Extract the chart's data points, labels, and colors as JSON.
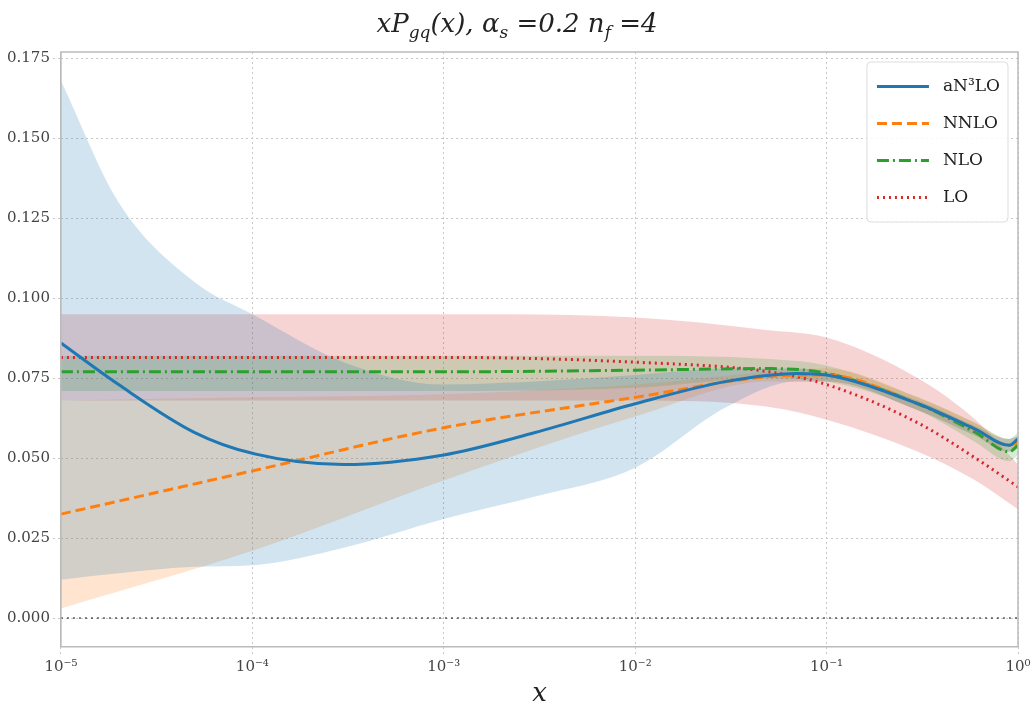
{
  "chart_data": {
    "type": "line",
    "title": "xP$_{gq}$(x),  α$_{s}$ =0.2 n$_{f}$ =4",
    "xlabel": "x",
    "log": "x",
    "grid": true,
    "legend": "top right",
    "marker": "none",
    "xlim": [
      1e-05,
      1
    ],
    "xticks": [
      {
        "value": 1e-05,
        "label": "10⁻⁵"
      },
      {
        "value": 0.0001,
        "label": "10⁻⁴"
      },
      {
        "value": 0.001,
        "label": "10⁻³"
      },
      {
        "value": 0.01,
        "label": "10⁻²"
      },
      {
        "value": 0.1,
        "label": "10⁻¹"
      },
      {
        "value": 1,
        "label": "10⁰"
      }
    ],
    "ylim": [
      -0.009,
      0.177
    ],
    "yticks": [
      {
        "value": 0,
        "label": "0.000"
      },
      {
        "value": 0.025,
        "label": "0.025"
      },
      {
        "value": 0.05,
        "label": "0.050"
      },
      {
        "value": 0.075,
        "label": "0.075"
      },
      {
        "value": 0.1,
        "label": "0.100"
      },
      {
        "value": 0.125,
        "label": "0.125"
      },
      {
        "value": 0.15,
        "label": "0.150"
      },
      {
        "value": 0.175,
        "label": "0.175"
      }
    ],
    "ref_lines": [
      {
        "axis": "y",
        "value": 0,
        "color": "#000000",
        "line_style": "dotted"
      }
    ],
    "series": [
      {
        "name": "aN³LO",
        "color": "#1f77b4",
        "line_style": "solid",
        "x": [
          1e-05,
          2e-05,
          5e-05,
          0.0001,
          0.0003,
          0.001,
          0.003,
          0.01,
          0.03,
          0.07,
          0.1,
          0.3,
          0.6,
          0.9,
          1
        ],
        "values": [
          0.086,
          0.073,
          0.058,
          0.0515,
          0.048,
          0.051,
          0.058,
          0.067,
          0.074,
          0.0765,
          0.076,
          0.067,
          0.059,
          0.054,
          0.056
        ],
        "lower": [
          0.012,
          0.014,
          0.016,
          0.0165,
          0.022,
          0.031,
          0.038,
          0.047,
          0.066,
          0.074,
          0.074,
          0.065,
          0.057,
          0.052,
          0.054
        ],
        "upper": [
          0.168,
          0.13,
          0.105,
          0.095,
          0.08,
          0.073,
          0.074,
          0.076,
          0.078,
          0.078,
          0.077,
          0.068,
          0.06,
          0.056,
          0.057
        ]
      },
      {
        "name": "NNLO",
        "color": "#ff7f0e",
        "line_style": "dashed",
        "x": [
          1e-05,
          0.0001,
          0.001,
          0.01,
          0.05,
          0.1,
          0.3,
          0.6,
          0.9,
          1
        ],
        "values": [
          0.0325,
          0.046,
          0.0595,
          0.069,
          0.0755,
          0.076,
          0.067,
          0.059,
          0.054,
          0.055
        ],
        "lower": [
          0.003,
          0.021,
          0.043,
          0.063,
          0.074,
          0.074,
          0.065,
          0.057,
          0.052,
          0.053
        ],
        "upper": [
          0.068,
          0.069,
          0.07,
          0.073,
          0.077,
          0.078,
          0.069,
          0.061,
          0.056,
          0.057
        ]
      },
      {
        "name": "NLO",
        "color": "#2ca02c",
        "line_style": "dashdot",
        "x": [
          1e-05,
          0.001,
          0.01,
          0.05,
          0.1,
          0.3,
          0.6,
          0.9,
          1
        ],
        "values": [
          0.077,
          0.077,
          0.0775,
          0.078,
          0.0765,
          0.067,
          0.058,
          0.052,
          0.054
        ],
        "lower": [
          0.071,
          0.071,
          0.072,
          0.075,
          0.074,
          0.065,
          0.055,
          0.049,
          0.051
        ],
        "upper": [
          0.082,
          0.082,
          0.082,
          0.081,
          0.079,
          0.069,
          0.061,
          0.056,
          0.058
        ]
      },
      {
        "name": "LO",
        "color": "#d62728",
        "line_style": "dotted",
        "x": [
          1e-05,
          0.001,
          0.01,
          0.05,
          0.1,
          0.3,
          0.6,
          1
        ],
        "values": [
          0.0815,
          0.0815,
          0.08,
          0.077,
          0.073,
          0.061,
          0.05,
          0.041
        ],
        "lower": [
          0.068,
          0.068,
          0.068,
          0.066,
          0.062,
          0.052,
          0.043,
          0.034
        ],
        "upper": [
          0.095,
          0.095,
          0.094,
          0.09,
          0.0877,
          0.075,
          0.062,
          0.048
        ]
      }
    ]
  }
}
